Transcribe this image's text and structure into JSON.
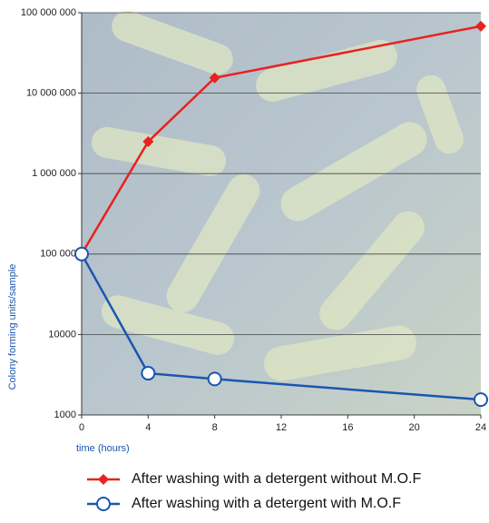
{
  "chart_data": {
    "type": "line",
    "x": [
      0,
      4,
      8,
      24
    ],
    "xlim": [
      0,
      24
    ],
    "xticks": [
      0,
      4,
      8,
      12,
      16,
      20,
      24
    ],
    "xlabel": "time (hours)",
    "ylabel": "Colony forming units/sample",
    "log_y": true,
    "ylim": [
      1000,
      100000000
    ],
    "yticks": [
      1000,
      10000,
      {
        "value": 100000,
        "label": "100 000"
      },
      {
        "value": 1000000,
        "label": "1 000 000"
      },
      {
        "value": 10000000,
        "label": "10 000 000"
      },
      {
        "value": 100000000,
        "label": "100 000 000"
      }
    ],
    "grid": true,
    "series": [
      {
        "name": "After washing with a detergent without M.O.F",
        "color": "#e8221e",
        "marker": "diamond",
        "values": [
          100000,
          2500000,
          15500000,
          68000000
        ]
      },
      {
        "name": "After washing with a detergent with M.O.F",
        "color": "#1a56b0",
        "marker": "circle",
        "values": [
          100000,
          3300,
          2800,
          1550
        ]
      }
    ]
  }
}
